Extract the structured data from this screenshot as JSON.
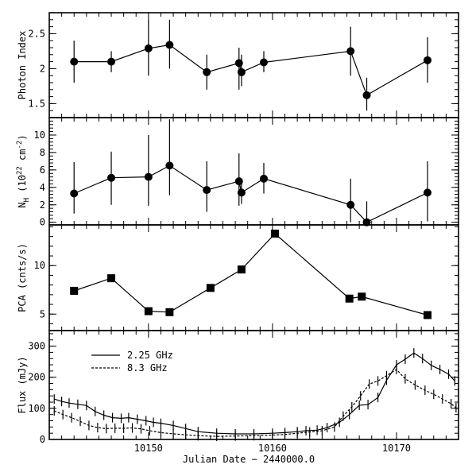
{
  "chart_data": {
    "type": "scatter",
    "xlabel": "Julian Date − 2440000.0",
    "xlim": [
      10142,
      10175
    ],
    "xticks": [
      10150,
      10160,
      10170
    ],
    "panels": [
      {
        "id": "photon-index",
        "ylabel": "Photon Index",
        "ylim": [
          1.3,
          2.8
        ],
        "yticks": [
          1.5,
          2,
          2.5
        ],
        "ytick_labels": [
          "1.5",
          "2",
          "2.5"
        ],
        "marker": "circle",
        "connected": true,
        "points": [
          {
            "x": 10144.0,
            "y": 2.1,
            "lo": 1.8,
            "hi": 2.4
          },
          {
            "x": 10147.0,
            "y": 2.1,
            "lo": 1.95,
            "hi": 2.25
          },
          {
            "x": 10150.0,
            "y": 2.29,
            "lo": 1.9,
            "hi": 2.7
          },
          {
            "x": 10151.7,
            "y": 2.34,
            "lo": 2.0,
            "hi": 2.7
          },
          {
            "x": 10154.7,
            "y": 1.95,
            "lo": 1.7,
            "hi": 2.2
          },
          {
            "x": 10157.3,
            "y": 2.08,
            "lo": 1.7,
            "hi": 2.3
          },
          {
            "x": 10157.5,
            "y": 1.95,
            "lo": 1.75,
            "hi": 2.2
          },
          {
            "x": 10159.3,
            "y": 2.09,
            "lo": 1.95,
            "hi": 2.25
          },
          {
            "x": 10166.3,
            "y": 2.25,
            "lo": 1.9,
            "hi": 2.6
          },
          {
            "x": 10167.6,
            "y": 1.62,
            "lo": 1.4,
            "hi": 1.87
          },
          {
            "x": 10172.5,
            "y": 2.12,
            "lo": 1.8,
            "hi": 2.45
          }
        ]
      },
      {
        "id": "nh",
        "ylabel": "N_H (10^22 cm^-2)",
        "ylim": [
          -0.3,
          12
        ],
        "yticks": [
          0,
          2,
          4,
          6,
          8,
          10
        ],
        "ytick_labels": [
          "0",
          "2",
          "4",
          "6",
          "8",
          "10"
        ],
        "marker": "circle",
        "connected": true,
        "points": [
          {
            "x": 10144.0,
            "y": 3.3,
            "lo": 1.0,
            "hi": 6.9
          },
          {
            "x": 10147.0,
            "y": 5.1,
            "lo": 2.0,
            "hi": 8.1
          },
          {
            "x": 10150.0,
            "y": 5.2,
            "lo": 1.9,
            "hi": 10.0
          },
          {
            "x": 10151.7,
            "y": 6.5,
            "lo": 3.1,
            "hi": 11.8
          },
          {
            "x": 10154.7,
            "y": 3.7,
            "lo": 1.2,
            "hi": 7.0
          },
          {
            "x": 10157.3,
            "y": 4.7,
            "lo": 1.9,
            "hi": 7.9
          },
          {
            "x": 10157.5,
            "y": 3.4,
            "lo": 2.1,
            "hi": 4.7
          },
          {
            "x": 10159.3,
            "y": 5.0,
            "lo": 3.3,
            "hi": 6.8
          },
          {
            "x": 10166.3,
            "y": 2.0,
            "lo": 0.0,
            "hi": 5.0
          },
          {
            "x": 10167.6,
            "y": 0.0,
            "lo": 0.0,
            "hi": 2.4
          },
          {
            "x": 10172.5,
            "y": 3.4,
            "lo": 0.1,
            "hi": 7.0
          }
        ]
      },
      {
        "id": "pca",
        "ylabel": "PCA (cnts/s)",
        "ylim": [
          3.3,
          14.2
        ],
        "yticks": [
          5,
          10
        ],
        "ytick_labels": [
          "5",
          "10"
        ],
        "marker": "square",
        "connected": true,
        "points": [
          {
            "x": 10144.0,
            "y": 7.4
          },
          {
            "x": 10147.0,
            "y": 8.7
          },
          {
            "x": 10150.0,
            "y": 5.3
          },
          {
            "x": 10151.7,
            "y": 5.2
          },
          {
            "x": 10155.0,
            "y": 7.7
          },
          {
            "x": 10157.5,
            "y": 9.6
          },
          {
            "x": 10160.2,
            "y": 13.3
          },
          {
            "x": 10166.2,
            "y": 6.6
          },
          {
            "x": 10167.2,
            "y": 6.8
          },
          {
            "x": 10172.5,
            "y": 4.9
          }
        ]
      },
      {
        "id": "flux",
        "ylabel": "Flux (mJy)",
        "ylim": [
          0,
          350
        ],
        "yticks": [
          0,
          100,
          200,
          300
        ],
        "ytick_labels": [
          "0",
          "100",
          "200",
          "300"
        ],
        "legend": {
          "placement": "upper-left",
          "entries": [
            "2.25 GHz",
            "8.3 GHz"
          ]
        },
        "series": [
          {
            "name": "2.25 GHz",
            "style": "solid",
            "x": [
              10142.4,
              10143.0,
              10143.6,
              10144.3,
              10145.0,
              10145.7,
              10146.4,
              10147.1,
              10147.8,
              10148.4,
              10149.1,
              10149.8,
              10150.4,
              10151.0,
              10152.0,
              10153.0,
              10154.0,
              10155.5,
              10157.0,
              10158.5,
              10160.0,
              10161.0,
              10162.0,
              10162.7,
              10163.6,
              10164.4,
              10165.4,
              10166.2,
              10167.0,
              10167.7,
              10168.5,
              10169.2,
              10170.0,
              10170.7,
              10171.4,
              10172.1,
              10172.8,
              10173.5,
              10174.2,
              10174.7
            ],
            "y": [
              130,
              122,
              117,
              113,
              109,
              90,
              78,
              70,
              68,
              70,
              65,
              60,
              55,
              52,
              45,
              35,
              25,
              20,
              18,
              18,
              20,
              22,
              25,
              28,
              30,
              38,
              55,
              80,
              110,
              112,
              135,
              190,
              240,
              258,
              278,
              260,
              238,
              225,
              210,
              188
            ]
          },
          {
            "name": "8.3 GHz",
            "style": "dashed",
            "x": [
              10142.4,
              10143.1,
              10143.8,
              10144.5,
              10145.2,
              10145.9,
              10146.6,
              10147.3,
              10148.0,
              10148.7,
              10149.4,
              10150.1,
              10151.0,
              10152.0,
              10153.0,
              10154.0,
              10155.5,
              10157.0,
              10158.5,
              10160.0,
              10161.0,
              10162.0,
              10163.0,
              10164.0,
              10165.0,
              10165.7,
              10166.4,
              10167.1,
              10167.8,
              10168.5,
              10169.2,
              10170.0,
              10170.7,
              10171.5,
              10172.3,
              10173.0,
              10173.7,
              10174.4,
              10174.8
            ],
            "y": [
              92,
              80,
              70,
              58,
              45,
              38,
              35,
              36,
              36,
              37,
              34,
              28,
              22,
              18,
              15,
              12,
              10,
              11,
              12,
              14,
              16,
              20,
              24,
              28,
              40,
              75,
              105,
              140,
              178,
              188,
              205,
              225,
              195,
              175,
              158,
              145,
              130,
              115,
              102
            ]
          }
        ]
      }
    ]
  }
}
